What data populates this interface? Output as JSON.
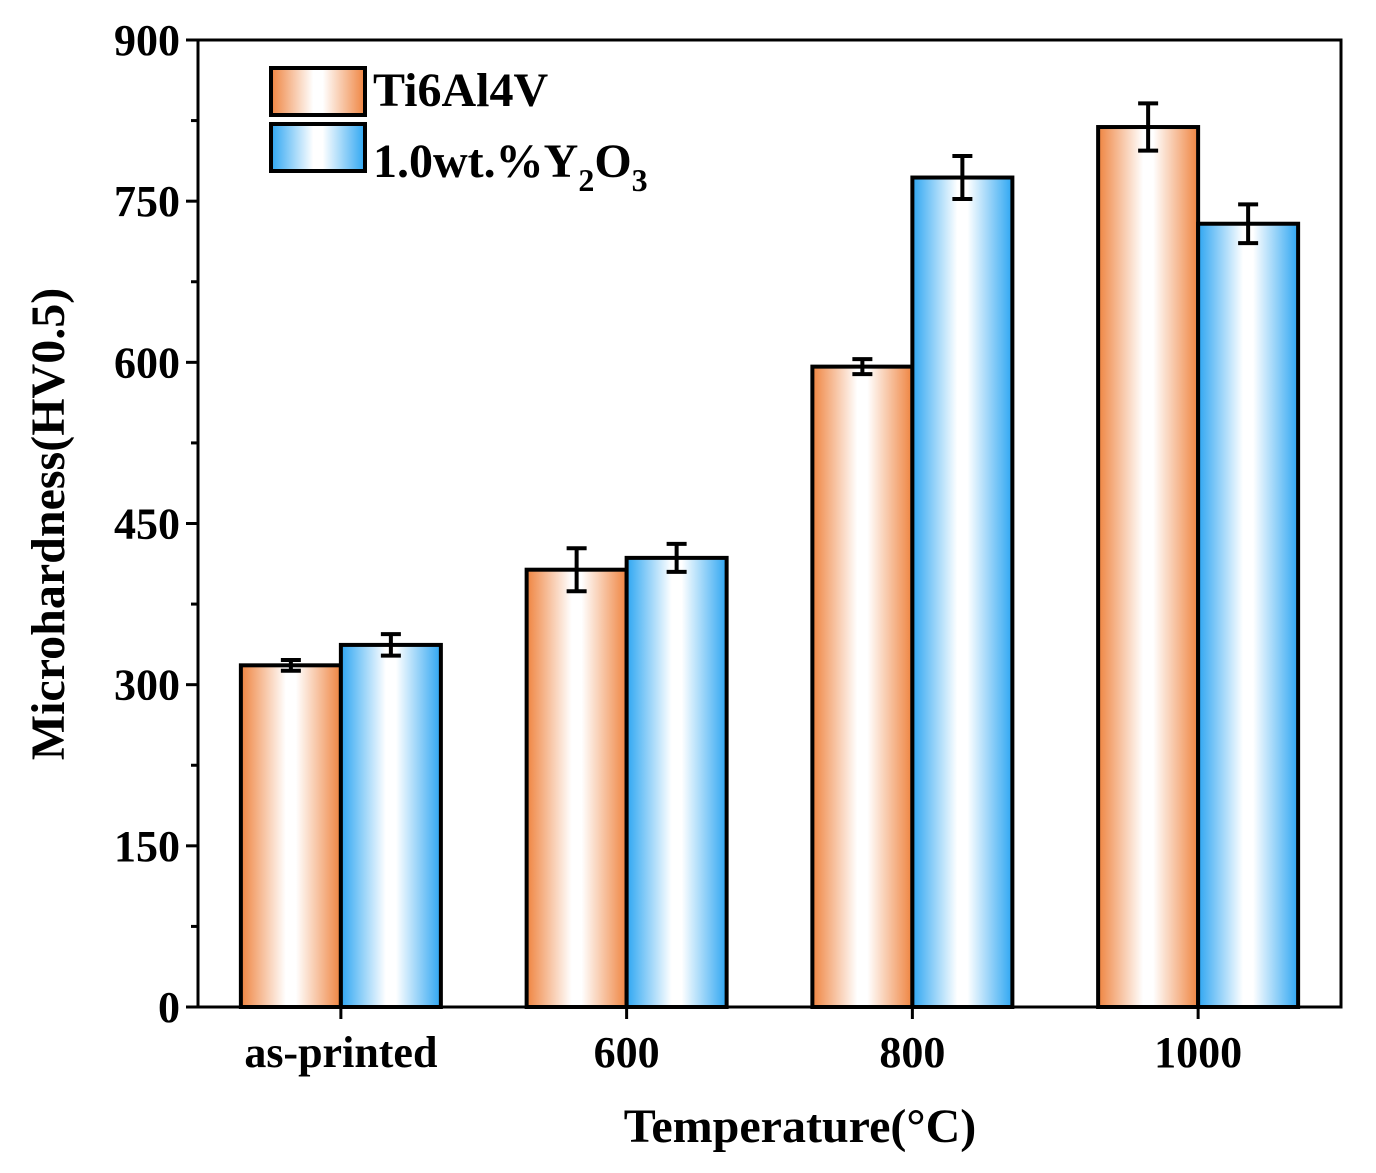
{
  "chart_data": {
    "type": "bar",
    "title": "",
    "xlabel": "Temperature(°C)",
    "ylabel": "Microhardness(HV0.5)",
    "categories": [
      "as-printed",
      "600",
      "800",
      "1000"
    ],
    "ylim": [
      0,
      900
    ],
    "yticks": [
      "0",
      "150",
      "300",
      "450",
      "600",
      "750",
      "900"
    ],
    "grid": false,
    "legend_position": "top-left",
    "legend": {
      "label1": "Ti6Al4V",
      "label2_main": "1.0wt.%Y",
      "label2_sub1": "2",
      "label2_mid": "O",
      "label2_sub2": "3"
    },
    "colors": {
      "Ti6Al4V": "#f08a4b",
      "1.0wt.%Y2O3": "#3aaaf0"
    },
    "series": [
      {
        "name": "Ti6Al4V",
        "values": [
          318,
          407,
          596,
          819
        ],
        "errors": [
          5,
          20,
          7,
          22
        ]
      },
      {
        "name": "1.0wt.%Y2O3",
        "values": [
          337,
          418,
          772,
          729
        ],
        "errors": [
          10,
          13,
          20,
          18
        ]
      }
    ]
  }
}
